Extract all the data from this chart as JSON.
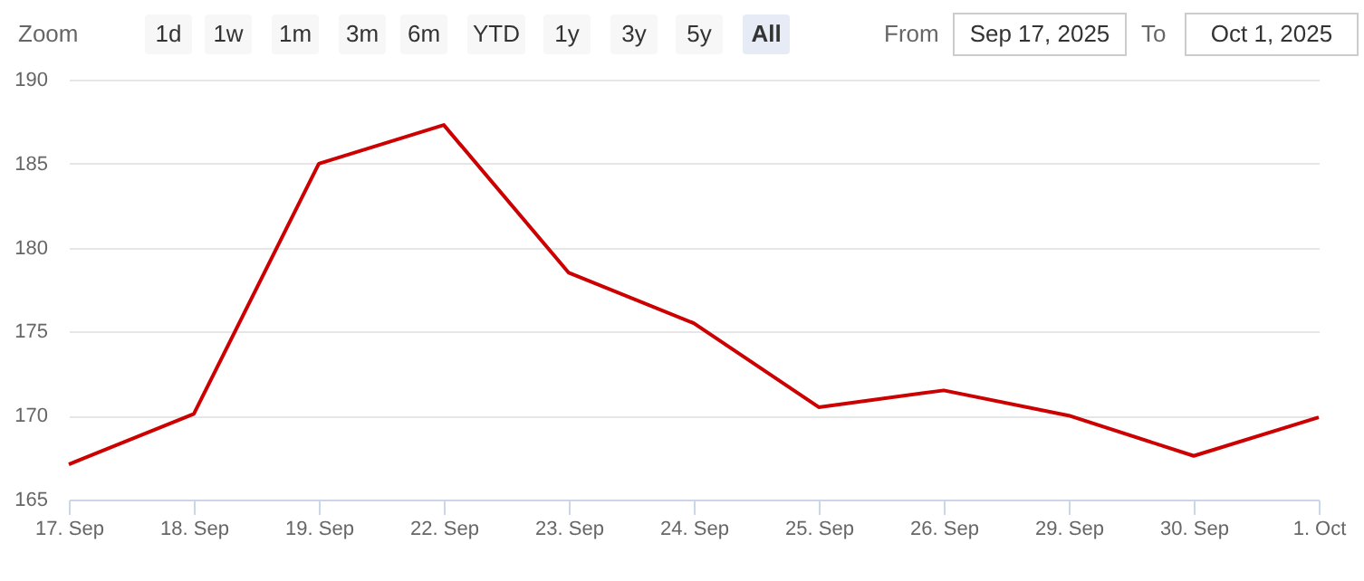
{
  "chart_data": {
    "type": "line",
    "categories": [
      "17. Sep",
      "18. Sep",
      "19. Sep",
      "22. Sep",
      "23. Sep",
      "24. Sep",
      "25. Sep",
      "26. Sep",
      "29. Sep",
      "30. Sep",
      "1. Oct"
    ],
    "series": [
      {
        "color": "#cc0000",
        "values": [
          167.1,
          170.1,
          185.0,
          187.3,
          178.5,
          175.5,
          170.5,
          171.5,
          170.0,
          167.6,
          169.9
        ]
      }
    ],
    "ylim": [
      165,
      190
    ],
    "yticks": [
      165,
      170,
      175,
      180,
      185,
      190
    ],
    "grid": "y",
    "legend": false,
    "marker": "none",
    "line_style": "solid",
    "annotations": [
      "Zoom",
      "1d",
      "1w",
      "1m",
      "3m",
      "6m",
      "YTD",
      "1y",
      "3y",
      "5y",
      "All",
      "From",
      "Sep 17, 2025",
      "To",
      "Oct 1, 2025"
    ]
  }
}
